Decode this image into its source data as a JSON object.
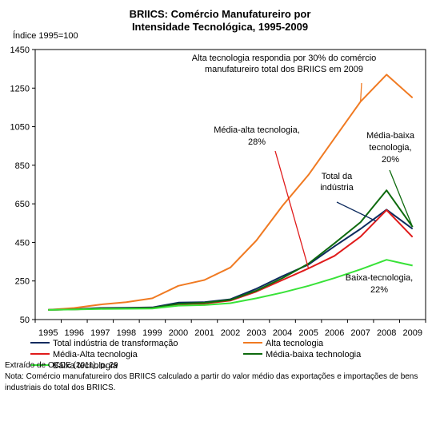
{
  "chart_data": {
    "type": "line",
    "title_lines": [
      "BRIICS: Comércio Manufatureiro por",
      "Intensidade Tecnológica, 1995-2009"
    ],
    "ylabel": "Índice 1995=100",
    "xlabel": "",
    "x": [
      "1995",
      "1996",
      "1997",
      "1998",
      "1999",
      "2000",
      "2001",
      "2002",
      "2003",
      "2004",
      "2005",
      "2006",
      "2007",
      "2008",
      "2009"
    ],
    "ylim": [
      50,
      1450
    ],
    "yticks": [
      "50",
      "250",
      "450",
      "650",
      "850",
      "1050",
      "1250",
      "1450"
    ],
    "grid": false,
    "legend_position": "bottom",
    "series": [
      {
        "name": "Total indústria de transformação",
        "color": "#0d2b5e",
        "values": [
          100,
          104,
          110,
          111,
          113,
          138,
          140,
          155,
          210,
          275,
          335,
          430,
          520,
          620,
          520
        ]
      },
      {
        "name": "Alta tecnologia",
        "color": "#f07a22",
        "values": [
          100,
          110,
          128,
          140,
          160,
          225,
          255,
          320,
          460,
          640,
          800,
          990,
          1180,
          1320,
          1200
        ]
      },
      {
        "name": "Média-Alta tecnologia",
        "color": "#e01b1b",
        "values": [
          100,
          103,
          107,
          108,
          110,
          130,
          133,
          148,
          195,
          255,
          315,
          380,
          480,
          618,
          478
        ]
      },
      {
        "name": "Média-baixa technologia",
        "color": "#0e6a0e",
        "values": [
          100,
          103,
          107,
          108,
          110,
          132,
          137,
          152,
          200,
          265,
          340,
          445,
          555,
          720,
          530
        ]
      },
      {
        "name": "Baixa tecnologia",
        "color": "#38e238",
        "values": [
          100,
          102,
          105,
          106,
          107,
          122,
          125,
          135,
          160,
          190,
          225,
          265,
          310,
          360,
          330
        ]
      }
    ],
    "annotations": [
      {
        "lines": [
          "Alta tecnologia respondia por  30% do comércio",
          "manufatureiro total dos  BRIICS em 2009"
        ],
        "series": "Alta tecnologia",
        "point_x": "2007",
        "point_y": 1180
      },
      {
        "lines": [
          "Média-alta tecnologia,",
          "28%"
        ],
        "series": "Média-Alta tecnologia",
        "point_x": "2005",
        "point_y": 315
      },
      {
        "lines": [
          "Total da",
          "indústria"
        ],
        "series": "Total indústria de transformação",
        "point_x": "2007.6",
        "point_y": 560
      },
      {
        "lines": [
          "Média-baixa",
          "tecnologia,",
          "20%"
        ],
        "series": "Média-baixa technologia",
        "point_x": "2009",
        "point_y": 530
      },
      {
        "lines": [
          "Baixa-tecnologia,",
          "22%"
        ],
        "series": "Baixa tecnologia",
        "point_x": "",
        "point_y": null
      }
    ]
  },
  "footer": {
    "source": "Extraído de OCDE (2011), p. 29",
    "note": "Nota: Comércio manufatureiro dos BRIICS calculado a partir do valor médio das exportações e importações de bens industriais do total dos BRIICS."
  }
}
